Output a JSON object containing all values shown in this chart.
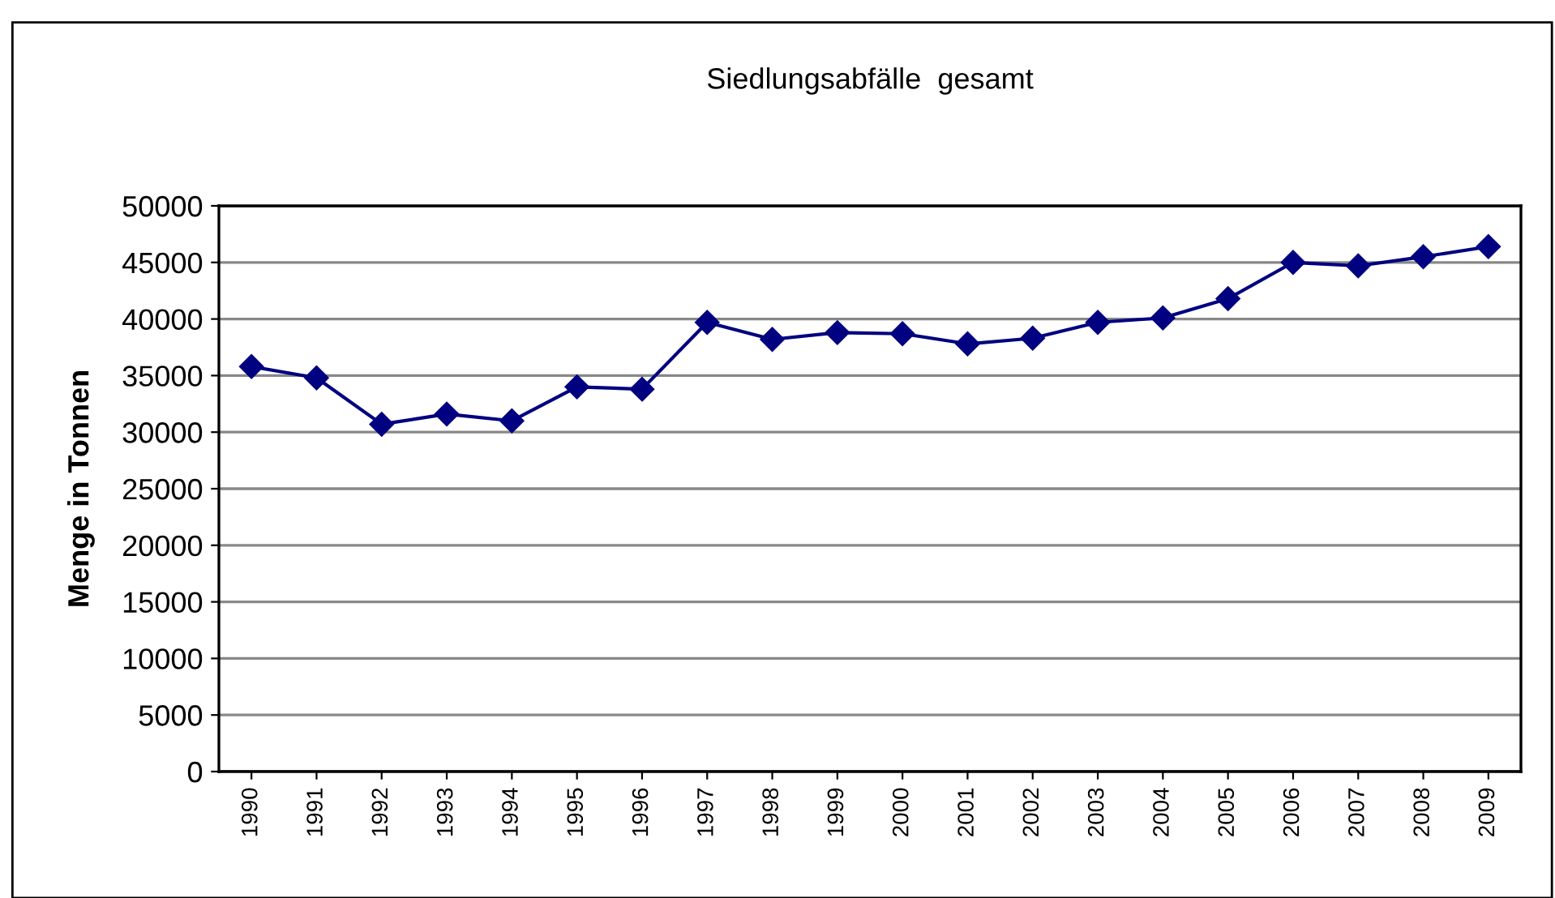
{
  "chart_data": {
    "type": "line",
    "title": "Siedlungsabfälle  gesamt",
    "ylabel": "Menge in Tonnen",
    "categories": [
      "1990",
      "1991",
      "1992",
      "1993",
      "1994",
      "1995",
      "1996",
      "1997",
      "1998",
      "1999",
      "2000",
      "2001",
      "2002",
      "2003",
      "2004",
      "2005",
      "2006",
      "2007",
      "2008",
      "2009"
    ],
    "series": [
      {
        "color": "#000080",
        "values": [
          35800,
          34800,
          30700,
          31600,
          31000,
          34000,
          33800,
          39700,
          38200,
          38800,
          38700,
          37800,
          38300,
          39700,
          40100,
          41800,
          45000,
          44700,
          45500,
          46400
        ]
      }
    ],
    "ylim": [
      0,
      50000
    ],
    "yticks": [
      0,
      5000,
      10000,
      15000,
      20000,
      25000,
      30000,
      35000,
      40000,
      45000,
      50000
    ],
    "grid": "y",
    "legend": false,
    "marker": "diamond",
    "line_style": "solid"
  }
}
